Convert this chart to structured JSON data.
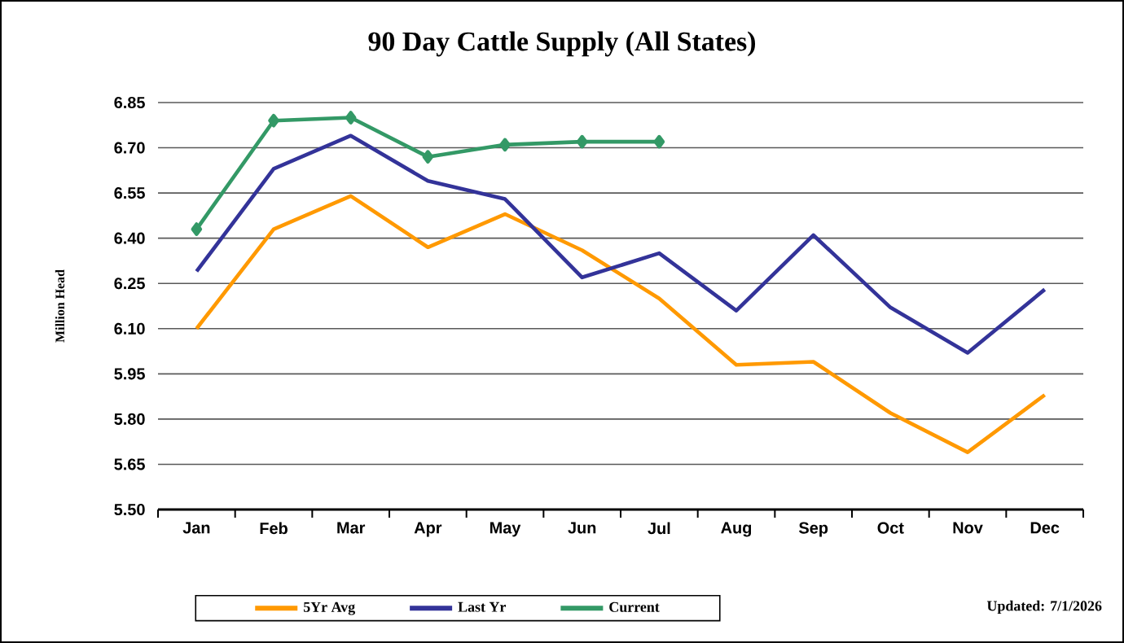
{
  "chart_data": {
    "type": "line",
    "title": "90 Day Cattle Supply (All States)",
    "ylabel": "Million Head",
    "categories": [
      "Jan",
      "Feb",
      "Mar",
      "Apr",
      "May",
      "Jun",
      "Jul",
      "Aug",
      "Sep",
      "Oct",
      "Nov",
      "Dec"
    ],
    "series": [
      {
        "name": "5Yr Avg",
        "color": "#ff9900",
        "values": [
          6.1,
          6.43,
          6.54,
          6.37,
          6.48,
          6.36,
          6.2,
          5.98,
          5.99,
          5.82,
          5.69,
          5.88
        ],
        "marker": "none"
      },
      {
        "name": "Last Yr",
        "color": "#333399",
        "values": [
          6.29,
          6.63,
          6.74,
          6.59,
          6.53,
          6.27,
          6.35,
          6.16,
          6.41,
          6.17,
          6.02,
          6.23
        ],
        "marker": "none"
      },
      {
        "name": "Current",
        "color": "#339966",
        "values": [
          6.43,
          6.79,
          6.8,
          6.67,
          6.71,
          6.72,
          6.72,
          null,
          null,
          null,
          null,
          null
        ],
        "marker": "diamond"
      }
    ],
    "ylim": [
      5.5,
      6.85
    ],
    "yticks": [
      {
        "value": 5.5,
        "label": "5.50"
      },
      {
        "value": 5.65,
        "label": "5.65"
      },
      {
        "value": 5.8,
        "label": "5.80"
      },
      {
        "value": 5.95,
        "label": "5.95"
      },
      {
        "value": 6.1,
        "label": "6.10"
      },
      {
        "value": 6.25,
        "label": "6.25"
      },
      {
        "value": 6.4,
        "label": "6.40"
      },
      {
        "value": 6.55,
        "label": "6.55"
      },
      {
        "value": 6.7,
        "label": "6.70"
      },
      {
        "value": 6.85,
        "label": "6.85"
      }
    ],
    "grid": "y",
    "legend": "bottom",
    "line_style": "solid",
    "annotations": [
      "Updated:  7/1/2026"
    ]
  }
}
